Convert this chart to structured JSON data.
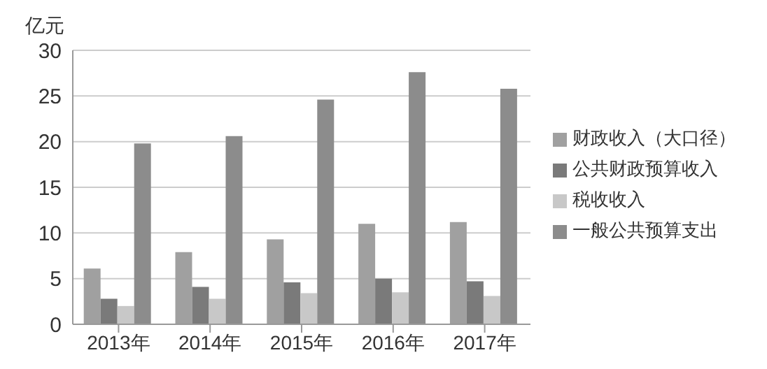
{
  "chart_data": {
    "type": "bar",
    "ylabel": "亿元",
    "categories": [
      "2013年",
      "2014年",
      "2015年",
      "2016年",
      "2017年"
    ],
    "series": [
      {
        "name": "财政收入（大口径）",
        "color": "#a0a0a0",
        "values": [
          6.1,
          7.9,
          9.3,
          11.0,
          11.2
        ]
      },
      {
        "name": "公共财政预算收入",
        "color": "#7a7a7a",
        "values": [
          2.8,
          4.1,
          4.6,
          5.0,
          4.7
        ]
      },
      {
        "name": "税收收入",
        "color": "#c8c8c8",
        "values": [
          2.0,
          2.8,
          3.4,
          3.5,
          3.1
        ]
      },
      {
        "name": "一般公共预算支出",
        "color": "#8c8c8c",
        "values": [
          19.8,
          20.6,
          24.6,
          27.6,
          25.8
        ]
      }
    ],
    "ylim": [
      0,
      30
    ],
    "yticks": [
      0,
      5,
      10,
      15,
      20,
      25,
      30
    ],
    "grid": "y",
    "legend": "right"
  }
}
